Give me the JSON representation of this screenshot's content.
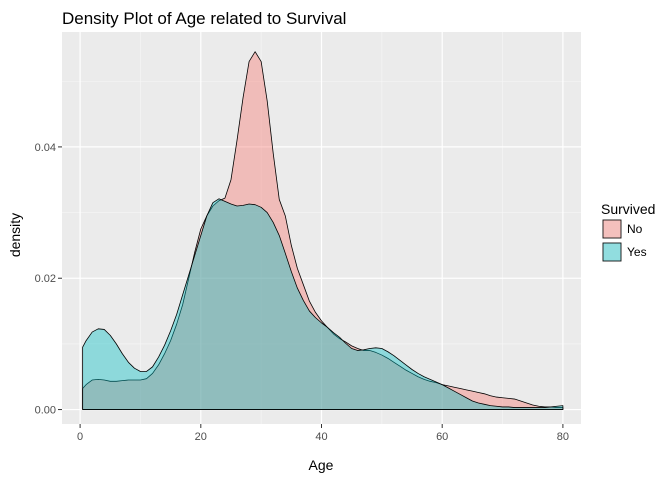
{
  "chart_data": {
    "type": "area",
    "title": "Density Plot of Age related to Survival",
    "xlabel": "Age",
    "ylabel": "density",
    "xlim": [
      -3,
      83
    ],
    "ylim": [
      -0.0022,
      0.0575
    ],
    "x_ticks": [
      0,
      20,
      40,
      60,
      80
    ],
    "x_tick_labels": [
      "0",
      "20",
      "40",
      "60",
      "80"
    ],
    "y_ticks": [
      0.0,
      0.02,
      0.04
    ],
    "y_tick_labels": [
      "0.00",
      "0.02",
      "0.04"
    ],
    "grid": true,
    "background": "#ebebeb",
    "legend": {
      "title": "Survived",
      "position": "right"
    },
    "series": [
      {
        "name": "No",
        "fill": "#f8766d",
        "points": [
          [
            0.42,
            0.0032
          ],
          [
            1,
            0.0038
          ],
          [
            2,
            0.0045
          ],
          [
            3,
            0.0046
          ],
          [
            4,
            0.0045
          ],
          [
            5,
            0.0043
          ],
          [
            6,
            0.0043
          ],
          [
            7,
            0.0044
          ],
          [
            8,
            0.0045
          ],
          [
            9,
            0.0045
          ],
          [
            10,
            0.0045
          ],
          [
            11,
            0.0047
          ],
          [
            12,
            0.0055
          ],
          [
            13,
            0.0068
          ],
          [
            14,
            0.0085
          ],
          [
            15,
            0.0105
          ],
          [
            16,
            0.013
          ],
          [
            17,
            0.016
          ],
          [
            18,
            0.02
          ],
          [
            19,
            0.024
          ],
          [
            20,
            0.0275
          ],
          [
            21,
            0.0295
          ],
          [
            22,
            0.031
          ],
          [
            23,
            0.0318
          ],
          [
            24,
            0.0322
          ],
          [
            25,
            0.035
          ],
          [
            26,
            0.041
          ],
          [
            27,
            0.0475
          ],
          [
            28,
            0.053
          ],
          [
            29,
            0.0545
          ],
          [
            30,
            0.053
          ],
          [
            31,
            0.047
          ],
          [
            32,
            0.039
          ],
          [
            33,
            0.032
          ],
          [
            34,
            0.0295
          ],
          [
            35,
            0.025
          ],
          [
            36,
            0.0215
          ],
          [
            37,
            0.019
          ],
          [
            38,
            0.0165
          ],
          [
            39,
            0.0148
          ],
          [
            40,
            0.0135
          ],
          [
            41,
            0.0125
          ],
          [
            42,
            0.0115
          ],
          [
            43,
            0.0108
          ],
          [
            44,
            0.0103
          ],
          [
            45,
            0.0097
          ],
          [
            46,
            0.0093
          ],
          [
            47,
            0.009
          ],
          [
            48,
            0.009
          ],
          [
            49,
            0.0087
          ],
          [
            50,
            0.0083
          ],
          [
            51,
            0.0078
          ],
          [
            52,
            0.0072
          ],
          [
            53,
            0.0066
          ],
          [
            54,
            0.006
          ],
          [
            55,
            0.0055
          ],
          [
            56,
            0.005
          ],
          [
            57,
            0.0046
          ],
          [
            58,
            0.0043
          ],
          [
            59,
            0.0041
          ],
          [
            60,
            0.0038
          ],
          [
            61,
            0.0036
          ],
          [
            62,
            0.0034
          ],
          [
            63,
            0.0032
          ],
          [
            64,
            0.003
          ],
          [
            65,
            0.0028
          ],
          [
            66,
            0.0026
          ],
          [
            67,
            0.0024
          ],
          [
            68,
            0.0021
          ],
          [
            69,
            0.0019
          ],
          [
            70,
            0.0018
          ],
          [
            71,
            0.0017
          ],
          [
            72,
            0.0016
          ],
          [
            73,
            0.0013
          ],
          [
            74,
            0.001
          ],
          [
            75,
            0.0007
          ],
          [
            76,
            0.0005
          ],
          [
            77,
            0.0004
          ],
          [
            78,
            0.0004
          ],
          [
            79,
            0.0003
          ],
          [
            80,
            0.0003
          ]
        ]
      },
      {
        "name": "Yes",
        "fill": "#00bfc4",
        "points": [
          [
            0.42,
            0.0095
          ],
          [
            1,
            0.0105
          ],
          [
            2,
            0.0118
          ],
          [
            3,
            0.0123
          ],
          [
            4,
            0.0122
          ],
          [
            5,
            0.0113
          ],
          [
            6,
            0.01
          ],
          [
            7,
            0.0085
          ],
          [
            8,
            0.0072
          ],
          [
            9,
            0.0063
          ],
          [
            10,
            0.0058
          ],
          [
            11,
            0.0058
          ],
          [
            12,
            0.0065
          ],
          [
            13,
            0.008
          ],
          [
            14,
            0.0098
          ],
          [
            15,
            0.012
          ],
          [
            16,
            0.0145
          ],
          [
            17,
            0.0175
          ],
          [
            18,
            0.0205
          ],
          [
            19,
            0.0235
          ],
          [
            20,
            0.0265
          ],
          [
            21,
            0.0295
          ],
          [
            22,
            0.0315
          ],
          [
            23,
            0.0321
          ],
          [
            24,
            0.0317
          ],
          [
            25,
            0.0313
          ],
          [
            26,
            0.031
          ],
          [
            27,
            0.0311
          ],
          [
            28,
            0.0313
          ],
          [
            29,
            0.0312
          ],
          [
            30,
            0.0308
          ],
          [
            31,
            0.03
          ],
          [
            32,
            0.0285
          ],
          [
            33,
            0.0265
          ],
          [
            34,
            0.0238
          ],
          [
            35,
            0.021
          ],
          [
            36,
            0.0185
          ],
          [
            37,
            0.0166
          ],
          [
            38,
            0.015
          ],
          [
            39,
            0.014
          ],
          [
            40,
            0.0132
          ],
          [
            41,
            0.0125
          ],
          [
            42,
            0.0117
          ],
          [
            43,
            0.011
          ],
          [
            44,
            0.0101
          ],
          [
            45,
            0.0093
          ],
          [
            46,
            0.009
          ],
          [
            47,
            0.0091
          ],
          [
            48,
            0.0093
          ],
          [
            49,
            0.0094
          ],
          [
            50,
            0.0093
          ],
          [
            51,
            0.0088
          ],
          [
            52,
            0.0082
          ],
          [
            53,
            0.0075
          ],
          [
            54,
            0.0068
          ],
          [
            55,
            0.0061
          ],
          [
            56,
            0.0055
          ],
          [
            57,
            0.005
          ],
          [
            58,
            0.0046
          ],
          [
            59,
            0.0042
          ],
          [
            60,
            0.0038
          ],
          [
            61,
            0.0033
          ],
          [
            62,
            0.0028
          ],
          [
            63,
            0.0023
          ],
          [
            64,
            0.0018
          ],
          [
            65,
            0.0013
          ],
          [
            66,
            0.001
          ],
          [
            67,
            0.0008
          ],
          [
            68,
            0.0006
          ],
          [
            69,
            0.0005
          ],
          [
            70,
            0.0004
          ],
          [
            71,
            0.0004
          ],
          [
            72,
            0.0003
          ],
          [
            73,
            0.0003
          ],
          [
            74,
            0.0003
          ],
          [
            75,
            0.0003
          ],
          [
            76,
            0.0003
          ],
          [
            77,
            0.0003
          ],
          [
            78,
            0.0004
          ],
          [
            79,
            0.0005
          ],
          [
            80,
            0.0006
          ]
        ]
      }
    ]
  }
}
